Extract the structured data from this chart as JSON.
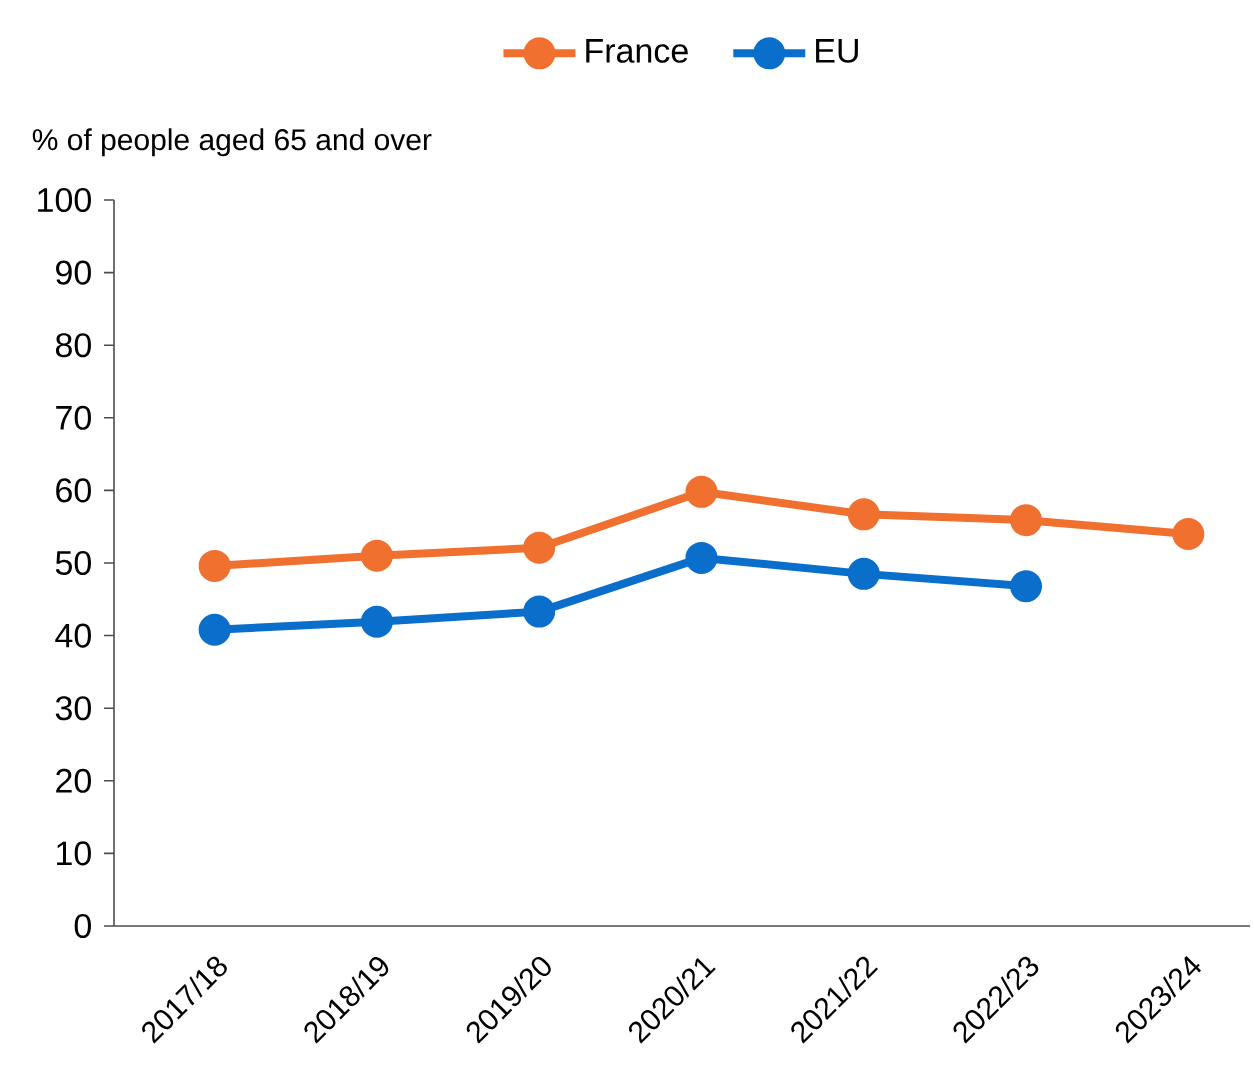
{
  "chart_data": {
    "type": "line",
    "ylabel": "% of people aged 65 and over",
    "categories": [
      "2017/18",
      "2018/19",
      "2019/20",
      "2020/21",
      "2021/22",
      "2022/23",
      "2023/24"
    ],
    "series": [
      {
        "name": "France",
        "color": "#f07030",
        "values": [
          49.6,
          51.0,
          52.1,
          59.8,
          56.7,
          55.9,
          54.0
        ]
      },
      {
        "name": "EU",
        "color": "#0a6ecb",
        "values": [
          40.8,
          41.9,
          43.3,
          50.7,
          48.5,
          46.8,
          null
        ]
      }
    ],
    "ylim": [
      0,
      100
    ],
    "yticks": [
      0,
      10,
      20,
      30,
      40,
      50,
      60,
      70,
      80,
      90,
      100
    ],
    "legend": "top",
    "marker": "circle",
    "line_style": "solid"
  }
}
